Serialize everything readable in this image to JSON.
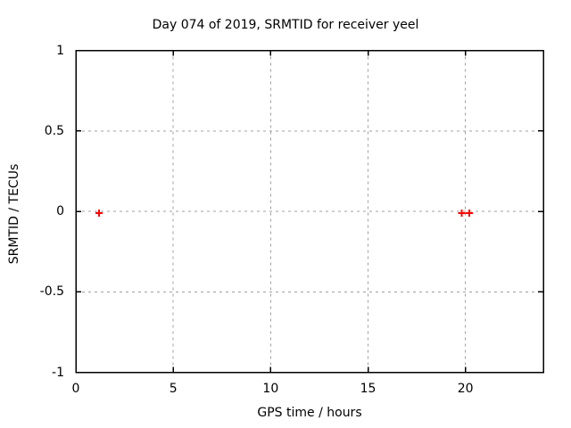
{
  "chart_data": {
    "type": "scatter",
    "title": "Day 074 of 2019, SRMTID for receiver yeel",
    "xlabel": "GPS time / hours",
    "ylabel": "SRMTID / TECUs",
    "xlim": [
      0,
      24
    ],
    "ylim": [
      -1,
      1
    ],
    "xticks": [
      0,
      5,
      10,
      15,
      20
    ],
    "yticks": [
      -1,
      -0.5,
      0,
      0.5,
      1
    ],
    "grid": "dashed-at-ticks",
    "legend": "none",
    "series": [
      {
        "name": "SRMTID",
        "marker": "plus",
        "color": "#ff0000",
        "points": [
          {
            "x": 1.2,
            "y": -0.01
          },
          {
            "x": 19.8,
            "y": -0.01
          },
          {
            "x": 20.2,
            "y": -0.01
          }
        ]
      }
    ],
    "colors": {
      "background": "#ffffff",
      "border": "#000000",
      "grid": "#a0a0a0",
      "text": "#000000",
      "marker": "#ff0000"
    }
  }
}
